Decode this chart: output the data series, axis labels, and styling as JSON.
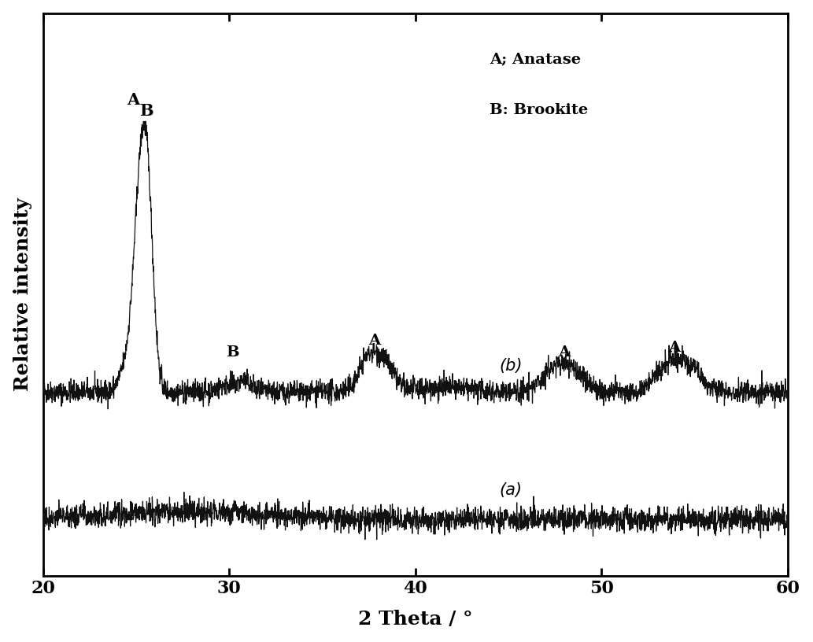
{
  "xlim": [
    20,
    60
  ],
  "xlabel": "2 Theta / °",
  "ylabel": "Relative intensity",
  "xticks": [
    20,
    30,
    40,
    50,
    60
  ],
  "background_color": "#ffffff",
  "line_color": "#111111",
  "label_a": "(a)",
  "label_b": "(b)",
  "legend_line1": "A; Anatase",
  "legend_line2": "B: Brookite",
  "seed_b": 42,
  "seed_a": 77,
  "noise_level_b": 0.012,
  "noise_level_a": 0.013,
  "baseline_b": 0.38,
  "baseline_a": 0.1,
  "peak_scale": 0.82,
  "n_points": 3000
}
